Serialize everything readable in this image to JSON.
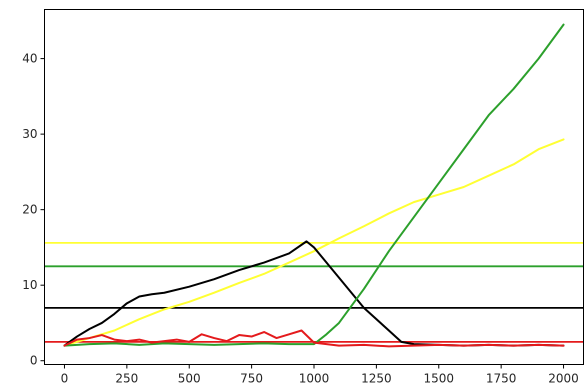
{
  "chart_data": {
    "type": "line",
    "title": "",
    "xlabel": "",
    "ylabel": "",
    "xlim": [
      -80,
      2080
    ],
    "ylim": [
      -0.5,
      46.5
    ],
    "x_ticks": [
      0,
      250,
      500,
      750,
      1000,
      1250,
      1500,
      1750,
      2000
    ],
    "y_ticks": [
      0,
      10,
      20,
      30,
      40
    ],
    "grid": false,
    "legend": "none",
    "series": [
      {
        "color": "#ffff33",
        "x": [
          0,
          100,
          200,
          300,
          400,
          500,
          600,
          700,
          800,
          900,
          1000,
          1100,
          1200,
          1300,
          1400,
          1500,
          1600,
          1700,
          1800,
          1900,
          2000
        ],
        "values": [
          2.0,
          3.0,
          4.0,
          5.5,
          6.8,
          7.8,
          9.0,
          10.3,
          11.5,
          13.0,
          14.5,
          16.2,
          17.8,
          19.5,
          21.0,
          22.0,
          23.0,
          24.5,
          26.0,
          28.0,
          29.3
        ]
      },
      {
        "color": "#000000",
        "x": [
          0,
          50,
          100,
          150,
          200,
          250,
          300,
          350,
          400,
          500,
          600,
          700,
          800,
          900,
          970,
          1000,
          1100,
          1200,
          1300,
          1350,
          1400,
          1500,
          1600,
          1700,
          1800,
          1900,
          2000
        ],
        "values": [
          2.0,
          3.2,
          4.2,
          5.0,
          6.2,
          7.6,
          8.5,
          8.8,
          9.0,
          9.8,
          10.8,
          12.0,
          13.0,
          14.2,
          15.8,
          15.0,
          11.0,
          7.0,
          4.0,
          2.5,
          2.2,
          2.1,
          2.0,
          2.1,
          2.0,
          2.1,
          2.0
        ]
      },
      {
        "color": "#2ca02c",
        "x": [
          0,
          100,
          200,
          300,
          400,
          500,
          600,
          700,
          800,
          900,
          1000,
          1050,
          1100,
          1200,
          1300,
          1400,
          1500,
          1600,
          1700,
          1800,
          1900,
          2000
        ],
        "values": [
          2.0,
          2.2,
          2.3,
          2.1,
          2.3,
          2.2,
          2.1,
          2.2,
          2.3,
          2.2,
          2.2,
          3.5,
          5.0,
          9.5,
          14.5,
          19.0,
          23.5,
          28.0,
          32.5,
          36.0,
          40.0,
          44.5
        ]
      },
      {
        "color": "#e41a1c",
        "x": [
          0,
          50,
          100,
          150,
          200,
          250,
          300,
          350,
          400,
          450,
          500,
          550,
          600,
          650,
          700,
          750,
          800,
          850,
          900,
          950,
          1000,
          1100,
          1200,
          1300,
          1400,
          1500,
          1600,
          1700,
          1800,
          1900,
          2000
        ],
        "values": [
          2.0,
          2.8,
          3.0,
          3.4,
          2.8,
          2.6,
          2.8,
          2.4,
          2.6,
          2.8,
          2.5,
          3.5,
          3.0,
          2.6,
          3.4,
          3.2,
          3.8,
          3.0,
          3.5,
          4.0,
          2.4,
          2.0,
          2.1,
          1.9,
          2.0,
          2.1,
          2.0,
          2.1,
          2.0,
          2.1,
          2.0
        ]
      }
    ],
    "hlines": [
      {
        "y": 15.6,
        "color": "#ffff33"
      },
      {
        "y": 12.5,
        "color": "#2ca02c"
      },
      {
        "y": 7.0,
        "color": "#000000"
      },
      {
        "y": 2.5,
        "color": "#e41a1c"
      }
    ]
  }
}
